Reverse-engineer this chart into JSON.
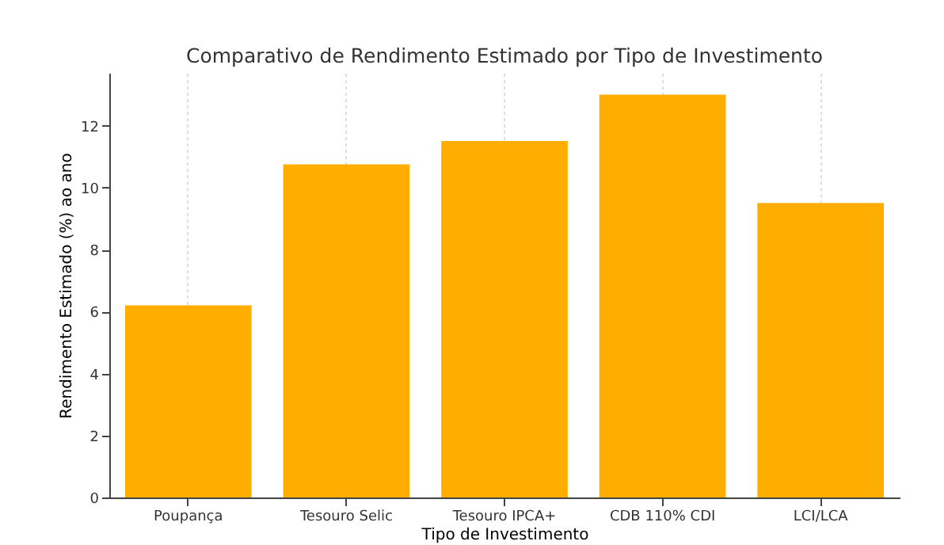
{
  "chart_data": {
    "type": "bar",
    "title": "Comparativo de Rendimento Estimado por Tipo de Investimento",
    "xlabel": "Tipo de Investimento",
    "ylabel": "Rendimento Estimado (%) ao ano",
    "categories": [
      "Poupança",
      "Tesouro Selic",
      "Tesouro IPCA+",
      "CDB 110% CDI",
      "LCI/LCA"
    ],
    "values": [
      6.2,
      10.75,
      11.5,
      13.0,
      9.5
    ],
    "color": "#ffae00",
    "ylim": [
      0,
      13.7
    ],
    "yticks": [
      0,
      2,
      4,
      6,
      8,
      10,
      12
    ],
    "grid": "x"
  }
}
